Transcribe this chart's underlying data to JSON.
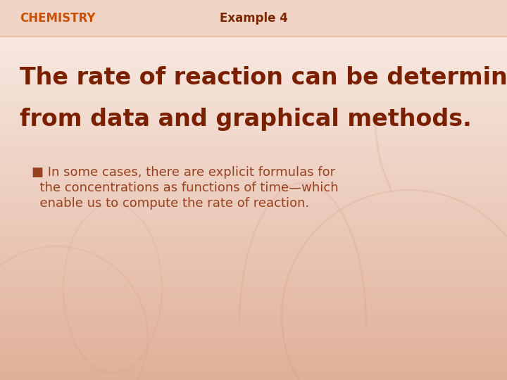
{
  "bg_color_light": "#faf0e8",
  "bg_color_mid": "#f5d5c0",
  "bg_color_dark": "#e8b898",
  "header_bg_color": "#eec8b0",
  "header_line_color": "#d4a080",
  "chemistry_label": "CHEMISTRY",
  "chemistry_color": "#c85000",
  "example_label": "Example 4",
  "example_color": "#7a2800",
  "title_line1": "The rate of reaction can be determined",
  "title_line2": "from data and graphical methods.",
  "title_color": "#7a2000",
  "bullet_line1": "■ In some cases, there are explicit formulas for",
  "bullet_line2": "  the concentrations as functions of time—which",
  "bullet_line3": "  enable us to compute the rate of reaction.",
  "bullet_color": "#964020",
  "glassware_color": "#c89070",
  "fig_width": 7.2,
  "fig_height": 5.4,
  "dpi": 100
}
